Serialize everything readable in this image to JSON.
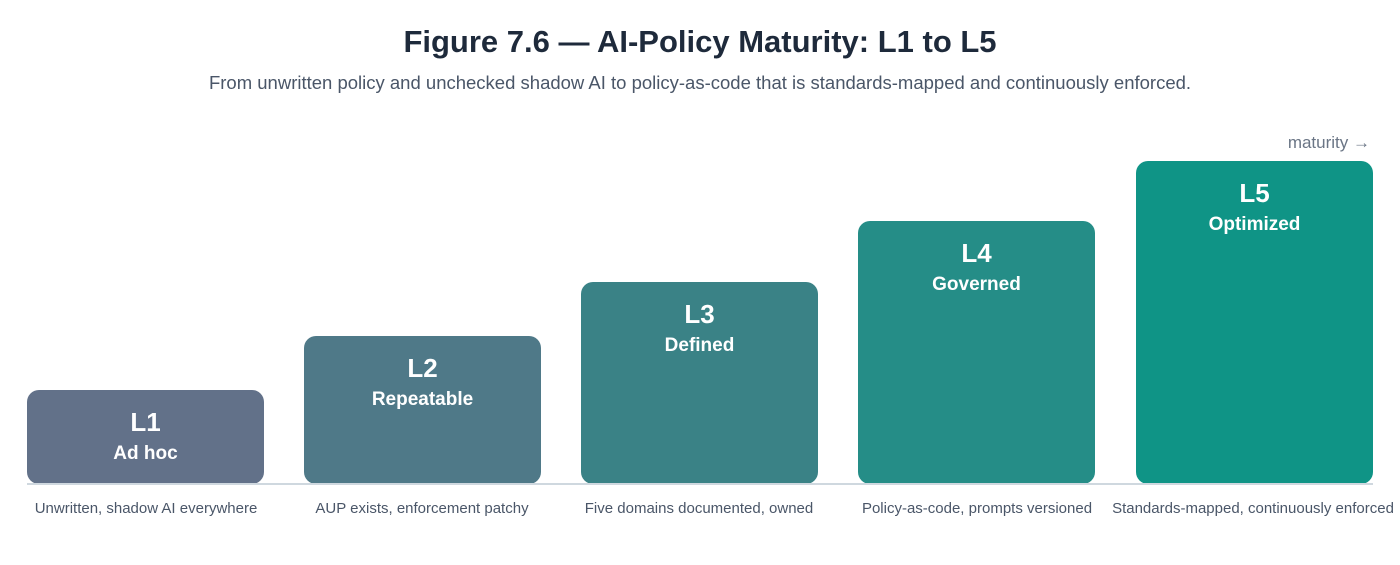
{
  "figure": {
    "title": "Figure 7.6 — AI-Policy Maturity: L1 to L5",
    "subtitle": "From unwritten policy and unchecked shadow AI to policy-as-code that is standards-mapped and continuously enforced.",
    "axis_note": "maturity →"
  },
  "levels": [
    {
      "level": "L1",
      "name": "Ad hoc",
      "caption": "Unwritten, shadow AI everywhere",
      "color": "#627189"
    },
    {
      "level": "L2",
      "name": "Repeatable",
      "caption": "AUP exists, enforcement patchy",
      "color": "#4f7988"
    },
    {
      "level": "L3",
      "name": "Defined",
      "caption": "Five domains documented, owned",
      "color": "#3a8286"
    },
    {
      "level": "L4",
      "name": "Governed",
      "caption": "Policy-as-code, prompts versioned",
      "color": "#258d87"
    },
    {
      "level": "L5",
      "name": "Optimized",
      "caption": "Standards-mapped, continuously enforced",
      "color": "#0f9486"
    }
  ],
  "colors": {
    "title": "#1e2a3b",
    "subtitle": "#4a5668",
    "baseline": "#cfd8df"
  }
}
